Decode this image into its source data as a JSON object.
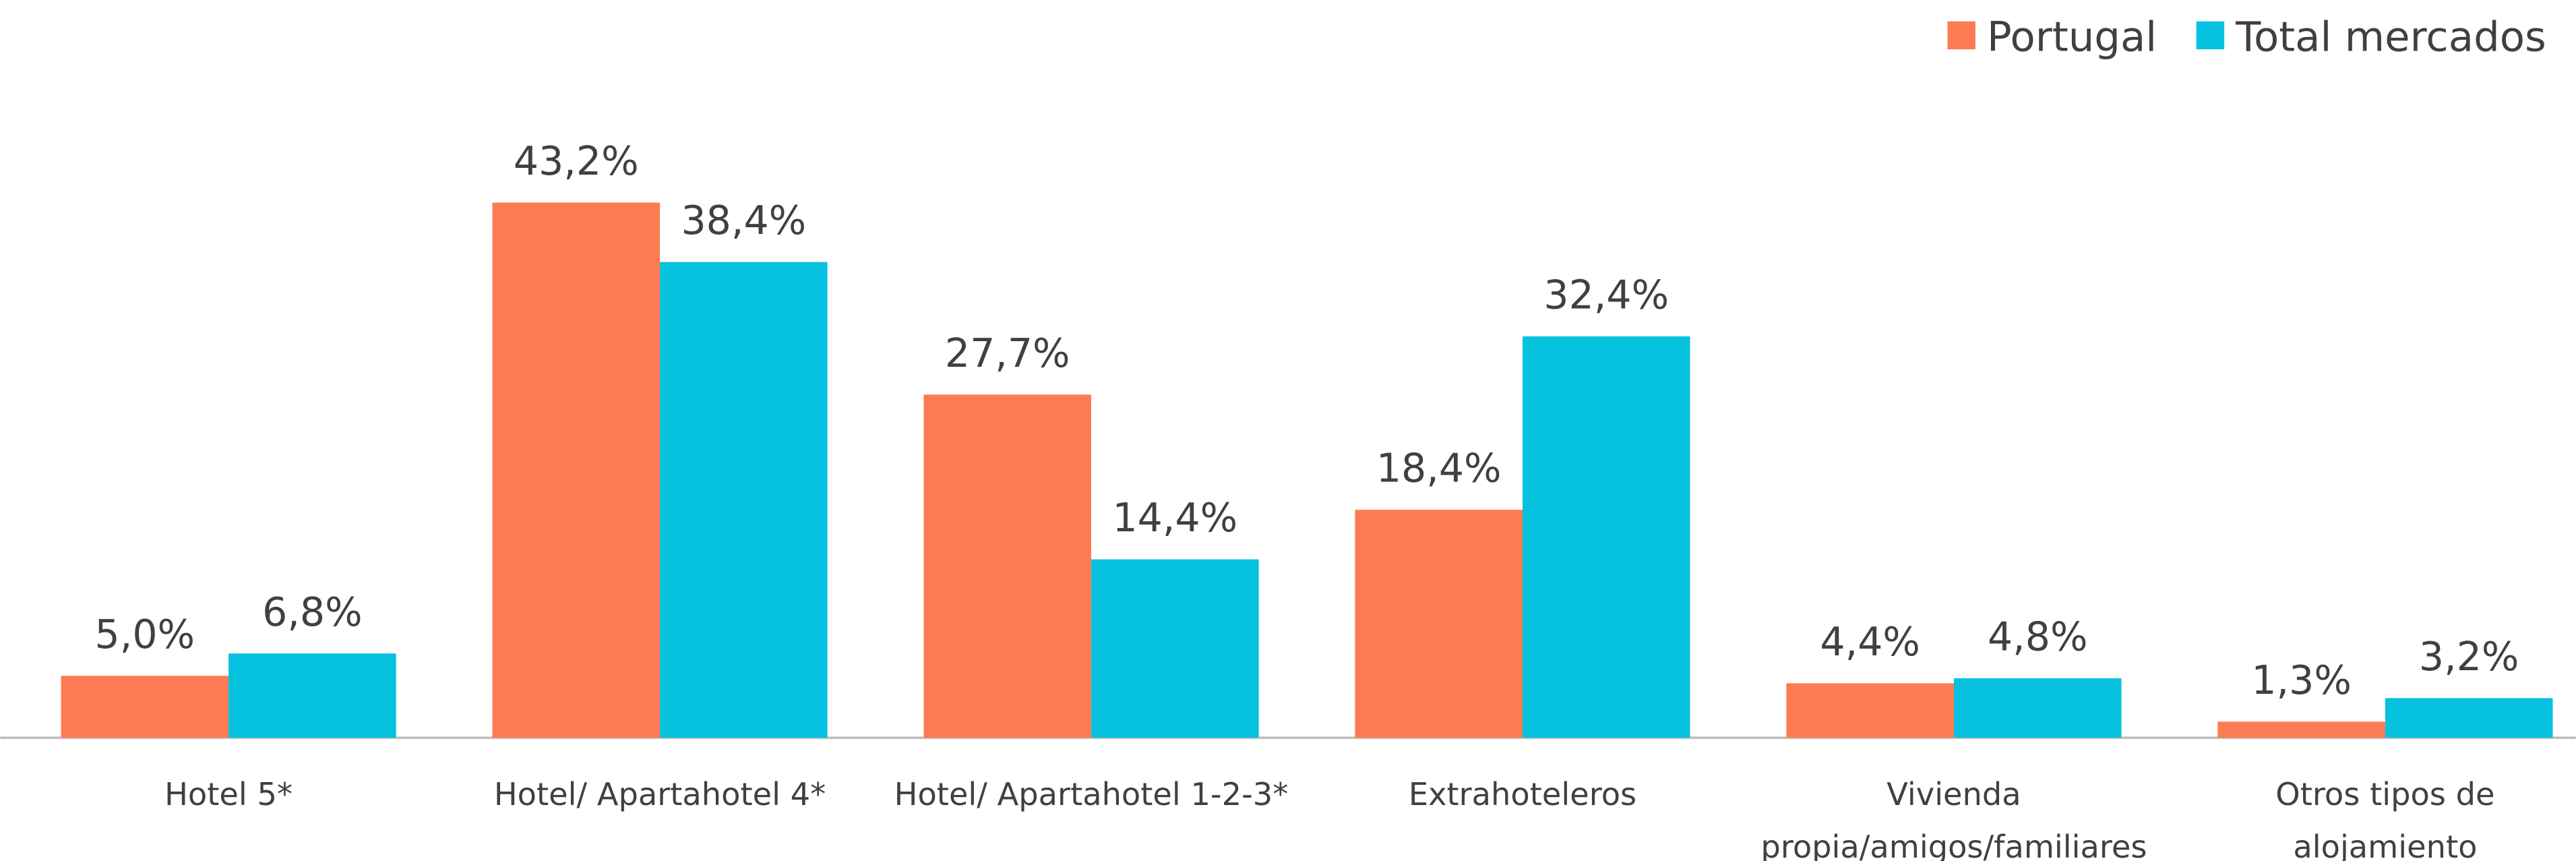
{
  "chart_data": {
    "type": "bar",
    "categories": [
      "Hotel 5*",
      "Hotel/ Apartahotel 4*",
      "Hotel/ Apartahotel 1-2-3*",
      "Extrahoteleros",
      "Vivienda\npropia/amigos/familiares",
      "Otros tipos de\nalojamiento"
    ],
    "series": [
      {
        "name": "Portugal",
        "color": "#fd7b53",
        "values": [
          5.0,
          43.2,
          27.7,
          18.4,
          4.4,
          1.3
        ],
        "value_labels": [
          "5,0%",
          "43,2%",
          "27,7%",
          "18,4%",
          "4,4%",
          "1,3%"
        ]
      },
      {
        "name": "Total mercados",
        "color": "#06c2de",
        "values": [
          6.8,
          38.4,
          14.4,
          32.4,
          4.8,
          3.2
        ],
        "value_labels": [
          "6,8%",
          "38,4%",
          "14,4%",
          "32,4%",
          "4,8%",
          "3,2%"
        ]
      }
    ],
    "ylim": [
      0,
      50
    ],
    "legend": "top-right"
  }
}
